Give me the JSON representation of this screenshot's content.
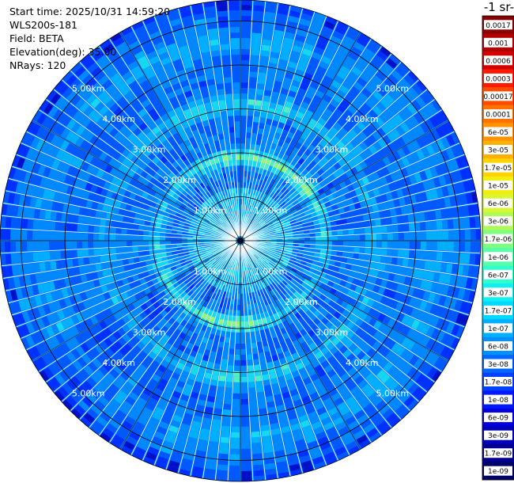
{
  "header": {
    "start_time": "Start time: 2025/10/31 14:59:20",
    "instrument": "WLS200s-181",
    "field": "Field: BETA",
    "elevation": "Elevation(deg): 35.00",
    "nrays": "NRays: 120"
  },
  "colorbar": {
    "unit_label": "-1 sr-",
    "ticks": [
      "0.0017",
      "0.001",
      "0.0006",
      "0.0003",
      "0.00017",
      "0.0001",
      "6e-05",
      "3e-05",
      "1.7e-05",
      "1e-05",
      "6e-06",
      "3e-06",
      "1.7e-06",
      "1e-06",
      "6e-07",
      "3e-07",
      "1.7e-07",
      "1e-07",
      "6e-08",
      "3e-08",
      "1.7e-08",
      "1e-08",
      "6e-09",
      "3e-09",
      "1.7e-09",
      "1e-09"
    ],
    "colors": [
      "#8b0000",
      "#b00000",
      "#d40000",
      "#ff1a00",
      "#ff4a00",
      "#ff7200",
      "#ff9400",
      "#ffb000",
      "#ffd200",
      "#f2ee10",
      "#d8f830",
      "#b0fa58",
      "#80ff80",
      "#58ffa8",
      "#30ffd0",
      "#10f0f0",
      "#00d8ff",
      "#00b0ff",
      "#0090ff",
      "#0068ff",
      "#0040ff",
      "#0018ff",
      "#0000e0",
      "#0000b8",
      "#000090",
      "#000068"
    ]
  },
  "chart_data": {
    "type": "heatmap",
    "projection": "polar",
    "field": "BETA",
    "elevation_deg": 35.0,
    "n_rays": 120,
    "range_rings_km": [
      1,
      2,
      3,
      4,
      5
    ],
    "range_ring_labels": [
      "1.00km",
      "2.00km",
      "3.00km",
      "4.00km",
      "5.00km"
    ],
    "max_range_km": 5.7,
    "color_scale": "log",
    "value_range": [
      1e-09,
      0.0017
    ],
    "aerosol_bands": [
      {
        "range_km": 1.9,
        "intensity": "1.7e-07 to 3e-07"
      },
      {
        "range_km": 3.1,
        "intensity": "1e-07 to 1.7e-07"
      },
      {
        "range_km": 4.5,
        "intensity": "6e-08 to 1e-07"
      }
    ]
  }
}
